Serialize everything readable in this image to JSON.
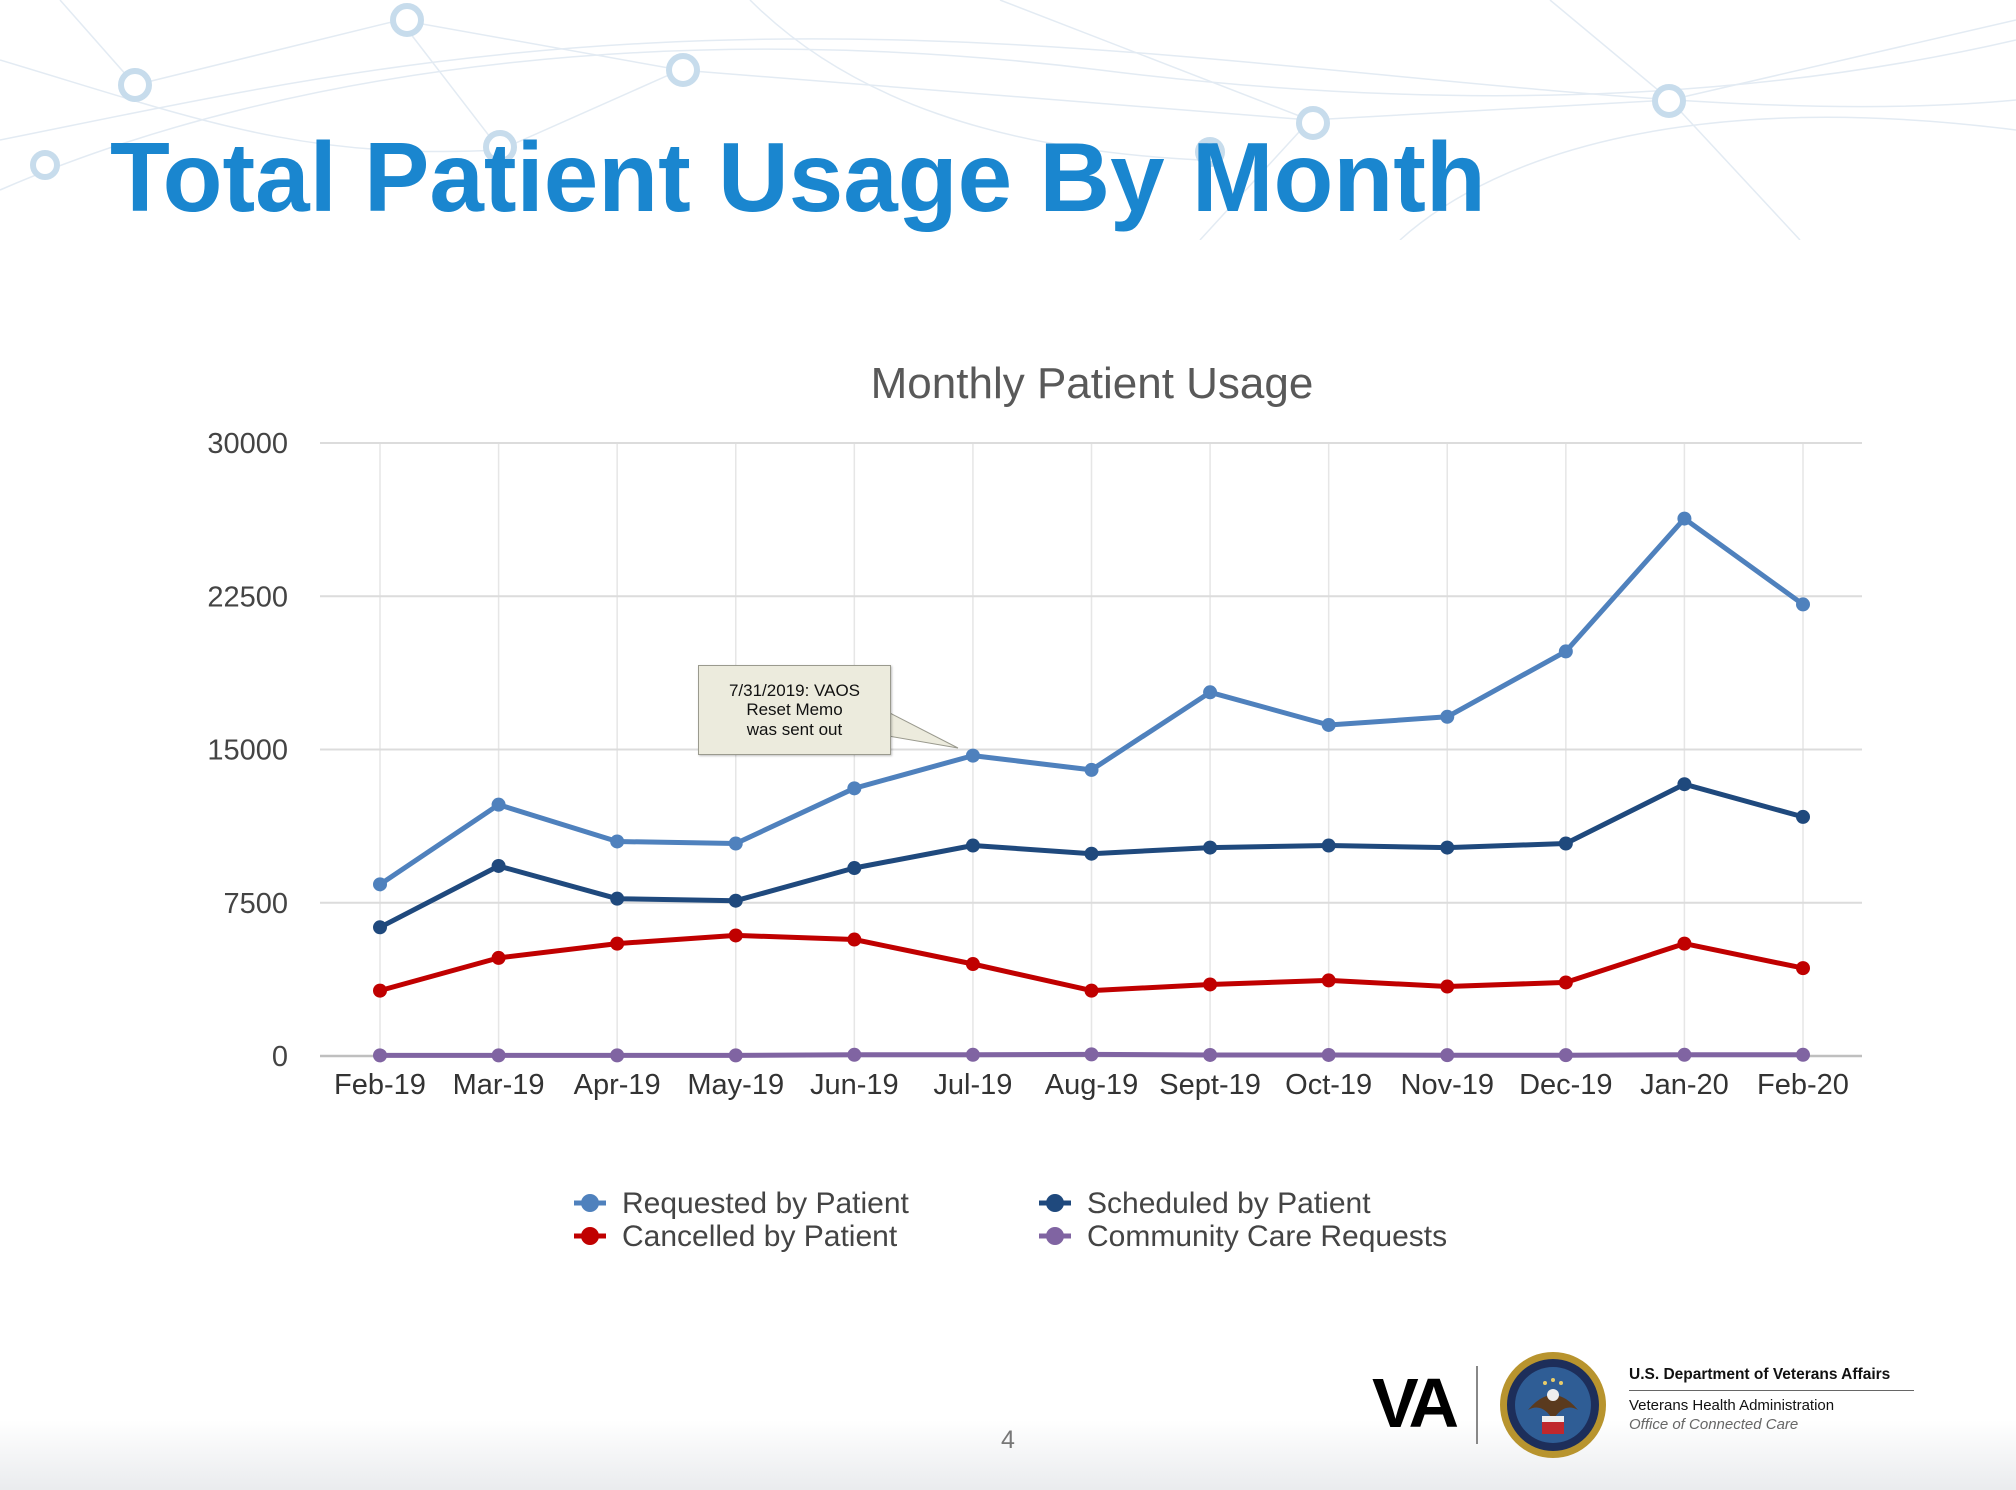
{
  "slide": {
    "title": "Total Patient Usage By Month",
    "page_number": "4"
  },
  "footer": {
    "logo_text": "VA",
    "agency": "U.S. Department of Veterans Affairs",
    "administration": "Veterans Health Administration",
    "office": "Office of Connected Care"
  },
  "chart_data": {
    "type": "line",
    "title": "Monthly Patient Usage",
    "xlabel": "",
    "ylabel": "",
    "ylim": [
      0,
      30000
    ],
    "yticks": [
      "0",
      "7500",
      "15000",
      "22500",
      "30000"
    ],
    "categories": [
      "Feb-19",
      "Mar-19",
      "Apr-19",
      "May-19",
      "Jun-19",
      "Jul-19",
      "Aug-19",
      "Sept-19",
      "Oct-19",
      "Nov-19",
      "Dec-19",
      "Jan-20",
      "Feb-20"
    ],
    "grid": true,
    "legend_position": "bottom",
    "series": [
      {
        "name": "Requested by Patient",
        "color": "#4f81bd",
        "values": [
          8400,
          12300,
          10500,
          10400,
          13100,
          14700,
          14000,
          17800,
          16200,
          16600,
          19800,
          26300,
          22100
        ]
      },
      {
        "name": "Scheduled by Patient",
        "color": "#1f497d",
        "values": [
          6300,
          9300,
          7700,
          7600,
          9200,
          10300,
          9900,
          10200,
          10300,
          10200,
          10400,
          13300,
          11700
        ]
      },
      {
        "name": "Cancelled by Patient",
        "color": "#c00000",
        "values": [
          3200,
          4800,
          5500,
          5900,
          5700,
          4500,
          3200,
          3500,
          3700,
          3400,
          3600,
          5500,
          4300
        ]
      },
      {
        "name": "Community Care Requests",
        "color": "#8064a2",
        "values": [
          30,
          30,
          30,
          30,
          60,
          60,
          80,
          50,
          50,
          40,
          40,
          60,
          60
        ]
      }
    ],
    "annotations": [
      {
        "text": "7/31/2019: VAOS\nReset Memo\nwas sent out",
        "series": "Requested by Patient",
        "category": "Jul-19"
      }
    ]
  }
}
